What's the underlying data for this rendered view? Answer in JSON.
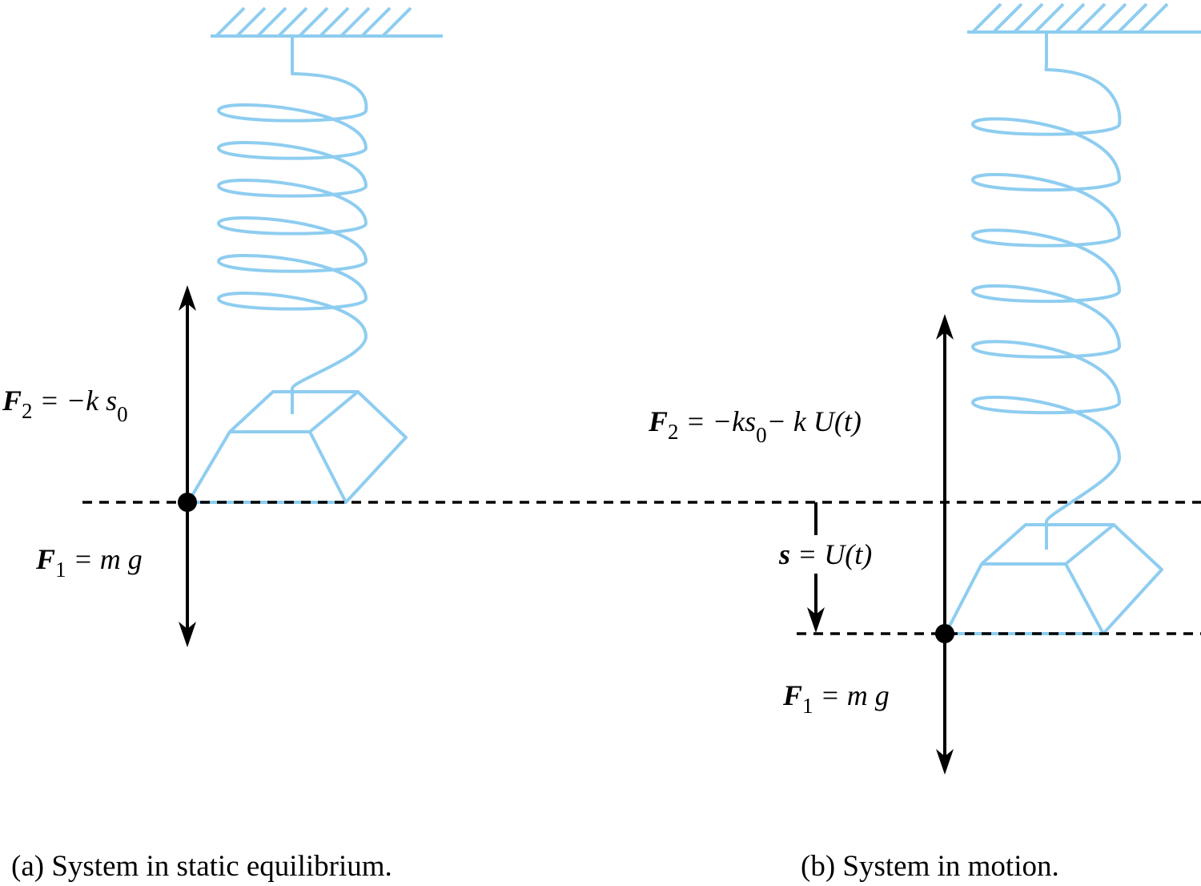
{
  "panel_a": {
    "f2_symbol": "F",
    "f2_subscript": "2",
    "f2_rhs": " = −k s",
    "f2_rhs_subscript": "0",
    "f1_symbol": "F",
    "f1_subscript": "1",
    "f1_rhs": " = m g",
    "caption": "(a) System in static equilibrium."
  },
  "panel_b": {
    "f2_symbol": "F",
    "f2_subscript": "2",
    "f2_rhs_1": " = −ks",
    "f2_rhs_subscript": "0",
    "f2_rhs_2": "− k U(t)",
    "s_symbol": "s",
    "s_rhs": " = U(t)",
    "f1_symbol": "F",
    "f1_subscript": "1",
    "f1_rhs": " = m g",
    "caption": "(b) System in motion."
  },
  "colors": {
    "spring": "#8ecdf0",
    "ink": "#000000"
  }
}
